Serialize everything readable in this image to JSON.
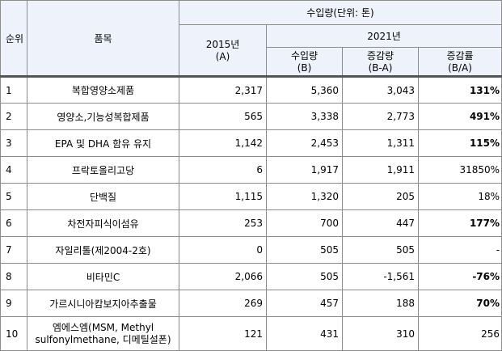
{
  "header": {
    "rank": "순위",
    "item": "품목",
    "unit_title": "수입량(단위: 톤)",
    "year_2015": "2015년",
    "year_2015_sub": "(A)",
    "year_2021": "2021년",
    "import_label": "수입량",
    "import_sub": "(B)",
    "change_label": "증감량",
    "change_sub": "(B-A)",
    "rate_label": "증감률",
    "rate_sub": "(B/A)"
  },
  "rows": [
    {
      "rank": "1",
      "item": "복합영양소제품",
      "v2015": "2,317",
      "v2021": "5,360",
      "change": "3,043",
      "rate": "131%"
    },
    {
      "rank": "2",
      "item": "영양소,기능성복합제품",
      "v2015": "565",
      "v2021": "3,338",
      "change": "2,773",
      "rate": "491%"
    },
    {
      "rank": "3",
      "item": "EPA 및 DHA 함유 유지",
      "v2015": "1,142",
      "v2021": "2,453",
      "change": "1,311",
      "rate": "115%"
    },
    {
      "rank": "4",
      "item": "프락토올리고당",
      "v2015": "6",
      "v2021": "1,917",
      "change": "1,911",
      "rate": "31850%"
    },
    {
      "rank": "5",
      "item": "단백질",
      "v2015": "1,115",
      "v2021": "1,320",
      "change": "205",
      "rate": "18%"
    },
    {
      "rank": "6",
      "item": "차전자피식이섬유",
      "v2015": "253",
      "v2021": "700",
      "change": "447",
      "rate": "177%"
    },
    {
      "rank": "7",
      "item": "자일리톨(제2004-2호)",
      "v2015": "0",
      "v2021": "505",
      "change": "505",
      "rate": "-"
    },
    {
      "rank": "8",
      "item": "비타민C",
      "v2015": "2,066",
      "v2021": "505",
      "change": "-1,561",
      "rate": "-76%"
    },
    {
      "rank": "9",
      "item": "가르시니아캄보지아추출물",
      "v2015": "269",
      "v2021": "457",
      "change": "188",
      "rate": "70%"
    },
    {
      "rank": "10",
      "item": "엠에스엠(MSM, Methyl sulfonylmethane, 디메틸설폰)",
      "v2015": "121",
      "v2021": "431",
      "change": "310",
      "rate": "256"
    }
  ]
}
